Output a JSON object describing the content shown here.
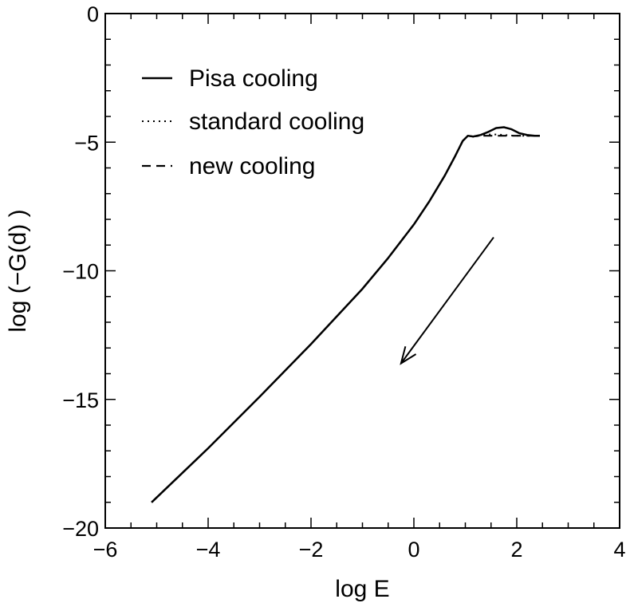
{
  "chart_data": {
    "type": "line",
    "title": "",
    "xlabel": "log E",
    "ylabel": "log (−G(d) )",
    "xlim": [
      -6,
      4
    ],
    "ylim": [
      -20,
      0
    ],
    "xticks": [
      -6,
      -4,
      -2,
      0,
      2,
      4
    ],
    "yticks": [
      0,
      -5,
      -10,
      -15,
      -20
    ],
    "xtick_labels": [
      "−6",
      "−4",
      "−2",
      "0",
      "2",
      "4"
    ],
    "ytick_labels": [
      "0",
      "−5",
      "−10",
      "−15",
      "−20"
    ],
    "grid": false,
    "legend_position": "top-left",
    "series": [
      {
        "name": "Pisa cooling",
        "style": "solid",
        "x": [
          -5.1,
          -4.0,
          -3.0,
          -2.0,
          -1.0,
          -0.5,
          0.0,
          0.3,
          0.6,
          0.8,
          0.95,
          1.05,
          1.15,
          1.3,
          1.45,
          1.6,
          1.75,
          1.9,
          2.05,
          2.2,
          2.35,
          2.45
        ],
        "y": [
          -19.0,
          -16.9,
          -14.9,
          -12.85,
          -10.7,
          -9.5,
          -8.2,
          -7.3,
          -6.3,
          -5.55,
          -4.95,
          -4.75,
          -4.78,
          -4.72,
          -4.6,
          -4.45,
          -4.42,
          -4.5,
          -4.65,
          -4.72,
          -4.75,
          -4.75
        ]
      },
      {
        "name": "standard cooling",
        "style": "dotted",
        "x": [
          -5.1,
          -4.0,
          -3.0,
          -2.0,
          -1.0,
          -0.5,
          0.0,
          0.3,
          0.6,
          0.8,
          0.95,
          1.05,
          1.15,
          1.3,
          1.45,
          1.6,
          1.75,
          1.9,
          2.05,
          2.2,
          2.35,
          2.45
        ],
        "y": [
          -19.0,
          -16.9,
          -14.9,
          -12.85,
          -10.7,
          -9.5,
          -8.2,
          -7.3,
          -6.3,
          -5.55,
          -4.95,
          -4.75,
          -4.78,
          -4.74,
          -4.7,
          -4.7,
          -4.72,
          -4.74,
          -4.75,
          -4.75,
          -4.75,
          -4.75
        ]
      },
      {
        "name": "new cooling",
        "style": "dashed",
        "x": [
          -5.1,
          -4.0,
          -3.0,
          -2.0,
          -1.0,
          -0.5,
          0.0,
          0.3,
          0.6,
          0.8,
          0.95,
          1.05,
          1.15,
          1.3,
          1.45,
          1.6,
          1.75,
          1.9,
          2.05,
          2.2,
          2.35,
          2.45
        ],
        "y": [
          -19.0,
          -16.9,
          -14.9,
          -12.85,
          -10.7,
          -9.5,
          -8.2,
          -7.3,
          -6.3,
          -5.55,
          -4.95,
          -4.75,
          -4.78,
          -4.75,
          -4.75,
          -4.75,
          -4.75,
          -4.75,
          -4.75,
          -4.75,
          -4.75,
          -4.75
        ]
      }
    ],
    "annotations": [
      {
        "type": "arrow",
        "from": [
          1.55,
          -8.7
        ],
        "to": [
          -0.25,
          -13.6
        ]
      }
    ]
  }
}
